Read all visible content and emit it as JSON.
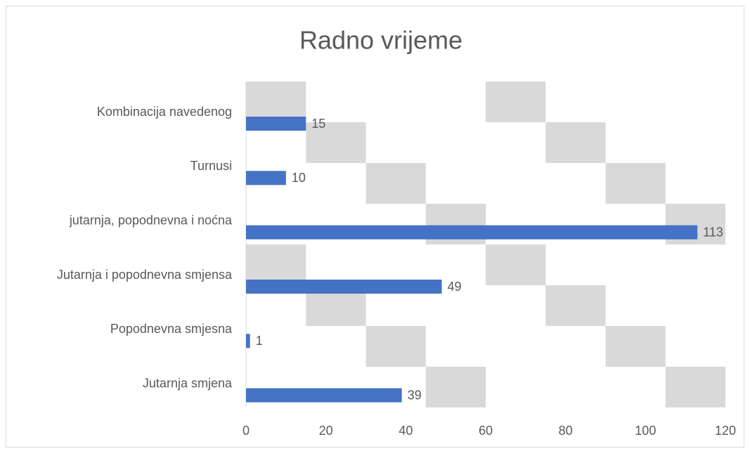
{
  "chart_data": {
    "type": "bar",
    "orientation": "horizontal",
    "title": "Radno vrijeme",
    "categories": [
      "Kombinacija navedenog",
      "Turnusi",
      "jutarnja, popodnevna i noćna",
      "Jutarnja i popodnevna smjensa",
      "Popodnevna smjesna",
      "Jutarnja smjena"
    ],
    "values": [
      15,
      10,
      113,
      49,
      1,
      39
    ],
    "color": "#4472c4",
    "xlim": [
      0,
      120
    ],
    "xticks": [
      0,
      20,
      40,
      60,
      80,
      100,
      120
    ],
    "data_labels": true
  }
}
